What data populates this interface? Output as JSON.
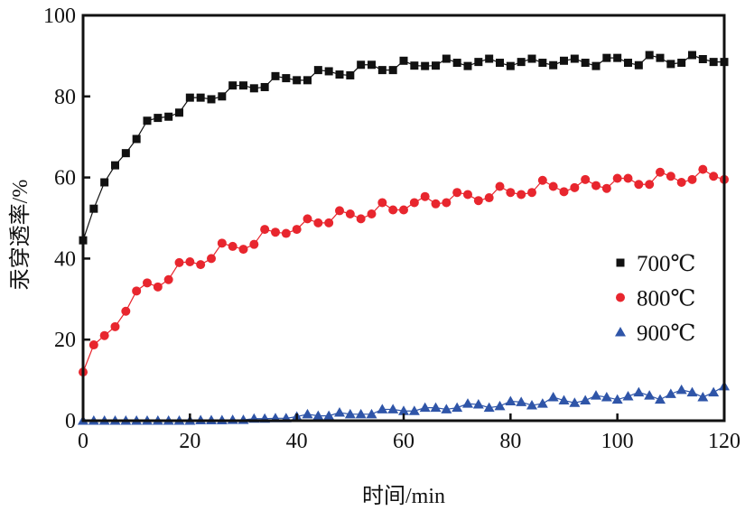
{
  "chart_data": {
    "type": "line",
    "title": "",
    "xlabel": "时间/min",
    "ylabel": "汞穿透率/%",
    "xlim": [
      0,
      120
    ],
    "ylim": [
      0,
      100
    ],
    "xticks": [
      "0",
      "20",
      "40",
      "60",
      "80",
      "100",
      "120"
    ],
    "yticks": [
      "0",
      "20",
      "40",
      "60",
      "80",
      "100"
    ],
    "grid": false,
    "legend_position": "right-middle",
    "x": [
      0,
      2,
      4,
      6,
      8,
      10,
      12,
      14,
      16,
      18,
      20,
      22,
      24,
      26,
      28,
      30,
      32,
      34,
      36,
      38,
      40,
      42,
      44,
      46,
      48,
      50,
      52,
      54,
      56,
      58,
      60,
      62,
      64,
      66,
      68,
      70,
      72,
      74,
      76,
      78,
      80,
      82,
      84,
      86,
      88,
      90,
      92,
      94,
      96,
      98,
      100,
      102,
      104,
      106,
      108,
      110,
      112,
      114,
      116,
      118,
      120
    ],
    "series": [
      {
        "name": "700℃",
        "color": "#111111",
        "marker": "square",
        "values": [
          44.5,
          52.3,
          58.8,
          63,
          66,
          69.5,
          74,
          74.7,
          75,
          76,
          79.7,
          79.7,
          79.3,
          80,
          82.7,
          82.7,
          82,
          82.3,
          85,
          84.5,
          84,
          84,
          86.5,
          86.2,
          85.4,
          85.2,
          87.8,
          87.8,
          86.5,
          86.5,
          88.8,
          87.6,
          87.5,
          87.6,
          89.3,
          88.3,
          87.5,
          88.5,
          89.3,
          88.3,
          87.5,
          88.5,
          89.3,
          88.3,
          87.7,
          88.8,
          89.3,
          88.3,
          87.5,
          89.5,
          89.5,
          88.3,
          87.7,
          90.2,
          89.5,
          88,
          88.3,
          90.2,
          89.2,
          88.5,
          88.5
        ]
      },
      {
        "name": "800℃",
        "color": "#e8262e",
        "marker": "circle",
        "values": [
          12,
          18.7,
          21,
          23.2,
          27,
          32,
          34,
          33,
          34.8,
          39,
          39.2,
          38.5,
          40,
          43.8,
          43,
          42.3,
          43.5,
          47.2,
          46.5,
          46.2,
          47.2,
          49.8,
          48.8,
          48.8,
          51.8,
          51,
          49.8,
          51,
          53.8,
          52,
          52,
          53.8,
          55.3,
          53.5,
          53.8,
          56.3,
          55.8,
          54.3,
          55,
          57.8,
          56.3,
          55.8,
          56.3,
          59.3,
          57.8,
          56.5,
          57.5,
          59.5,
          58,
          57.3,
          59.8,
          59.8,
          58.3,
          58.3,
          61.3,
          60.3,
          58.8,
          59.5,
          62,
          60.3,
          59.5
        ]
      },
      {
        "name": "900℃",
        "color": "#2f55a8",
        "marker": "triangle",
        "values": [
          0,
          0,
          0,
          0,
          0,
          0,
          0,
          0,
          0,
          0,
          0,
          0.1,
          0.1,
          0.1,
          0.2,
          0.2,
          0.5,
          0.5,
          0.6,
          0.6,
          1.0,
          1.6,
          1.2,
          1.2,
          2.0,
          1.6,
          1.6,
          1.6,
          2.8,
          2.8,
          2.4,
          2.4,
          3.2,
          3.2,
          2.8,
          3.2,
          4.2,
          4.0,
          3.2,
          3.6,
          4.8,
          4.6,
          3.8,
          4.2,
          5.8,
          5.0,
          4.4,
          5.0,
          6.2,
          5.8,
          5.2,
          6.0,
          7.0,
          6.2,
          5.2,
          6.6,
          7.6,
          7.0,
          5.8,
          7.0,
          8.5
        ]
      }
    ]
  }
}
